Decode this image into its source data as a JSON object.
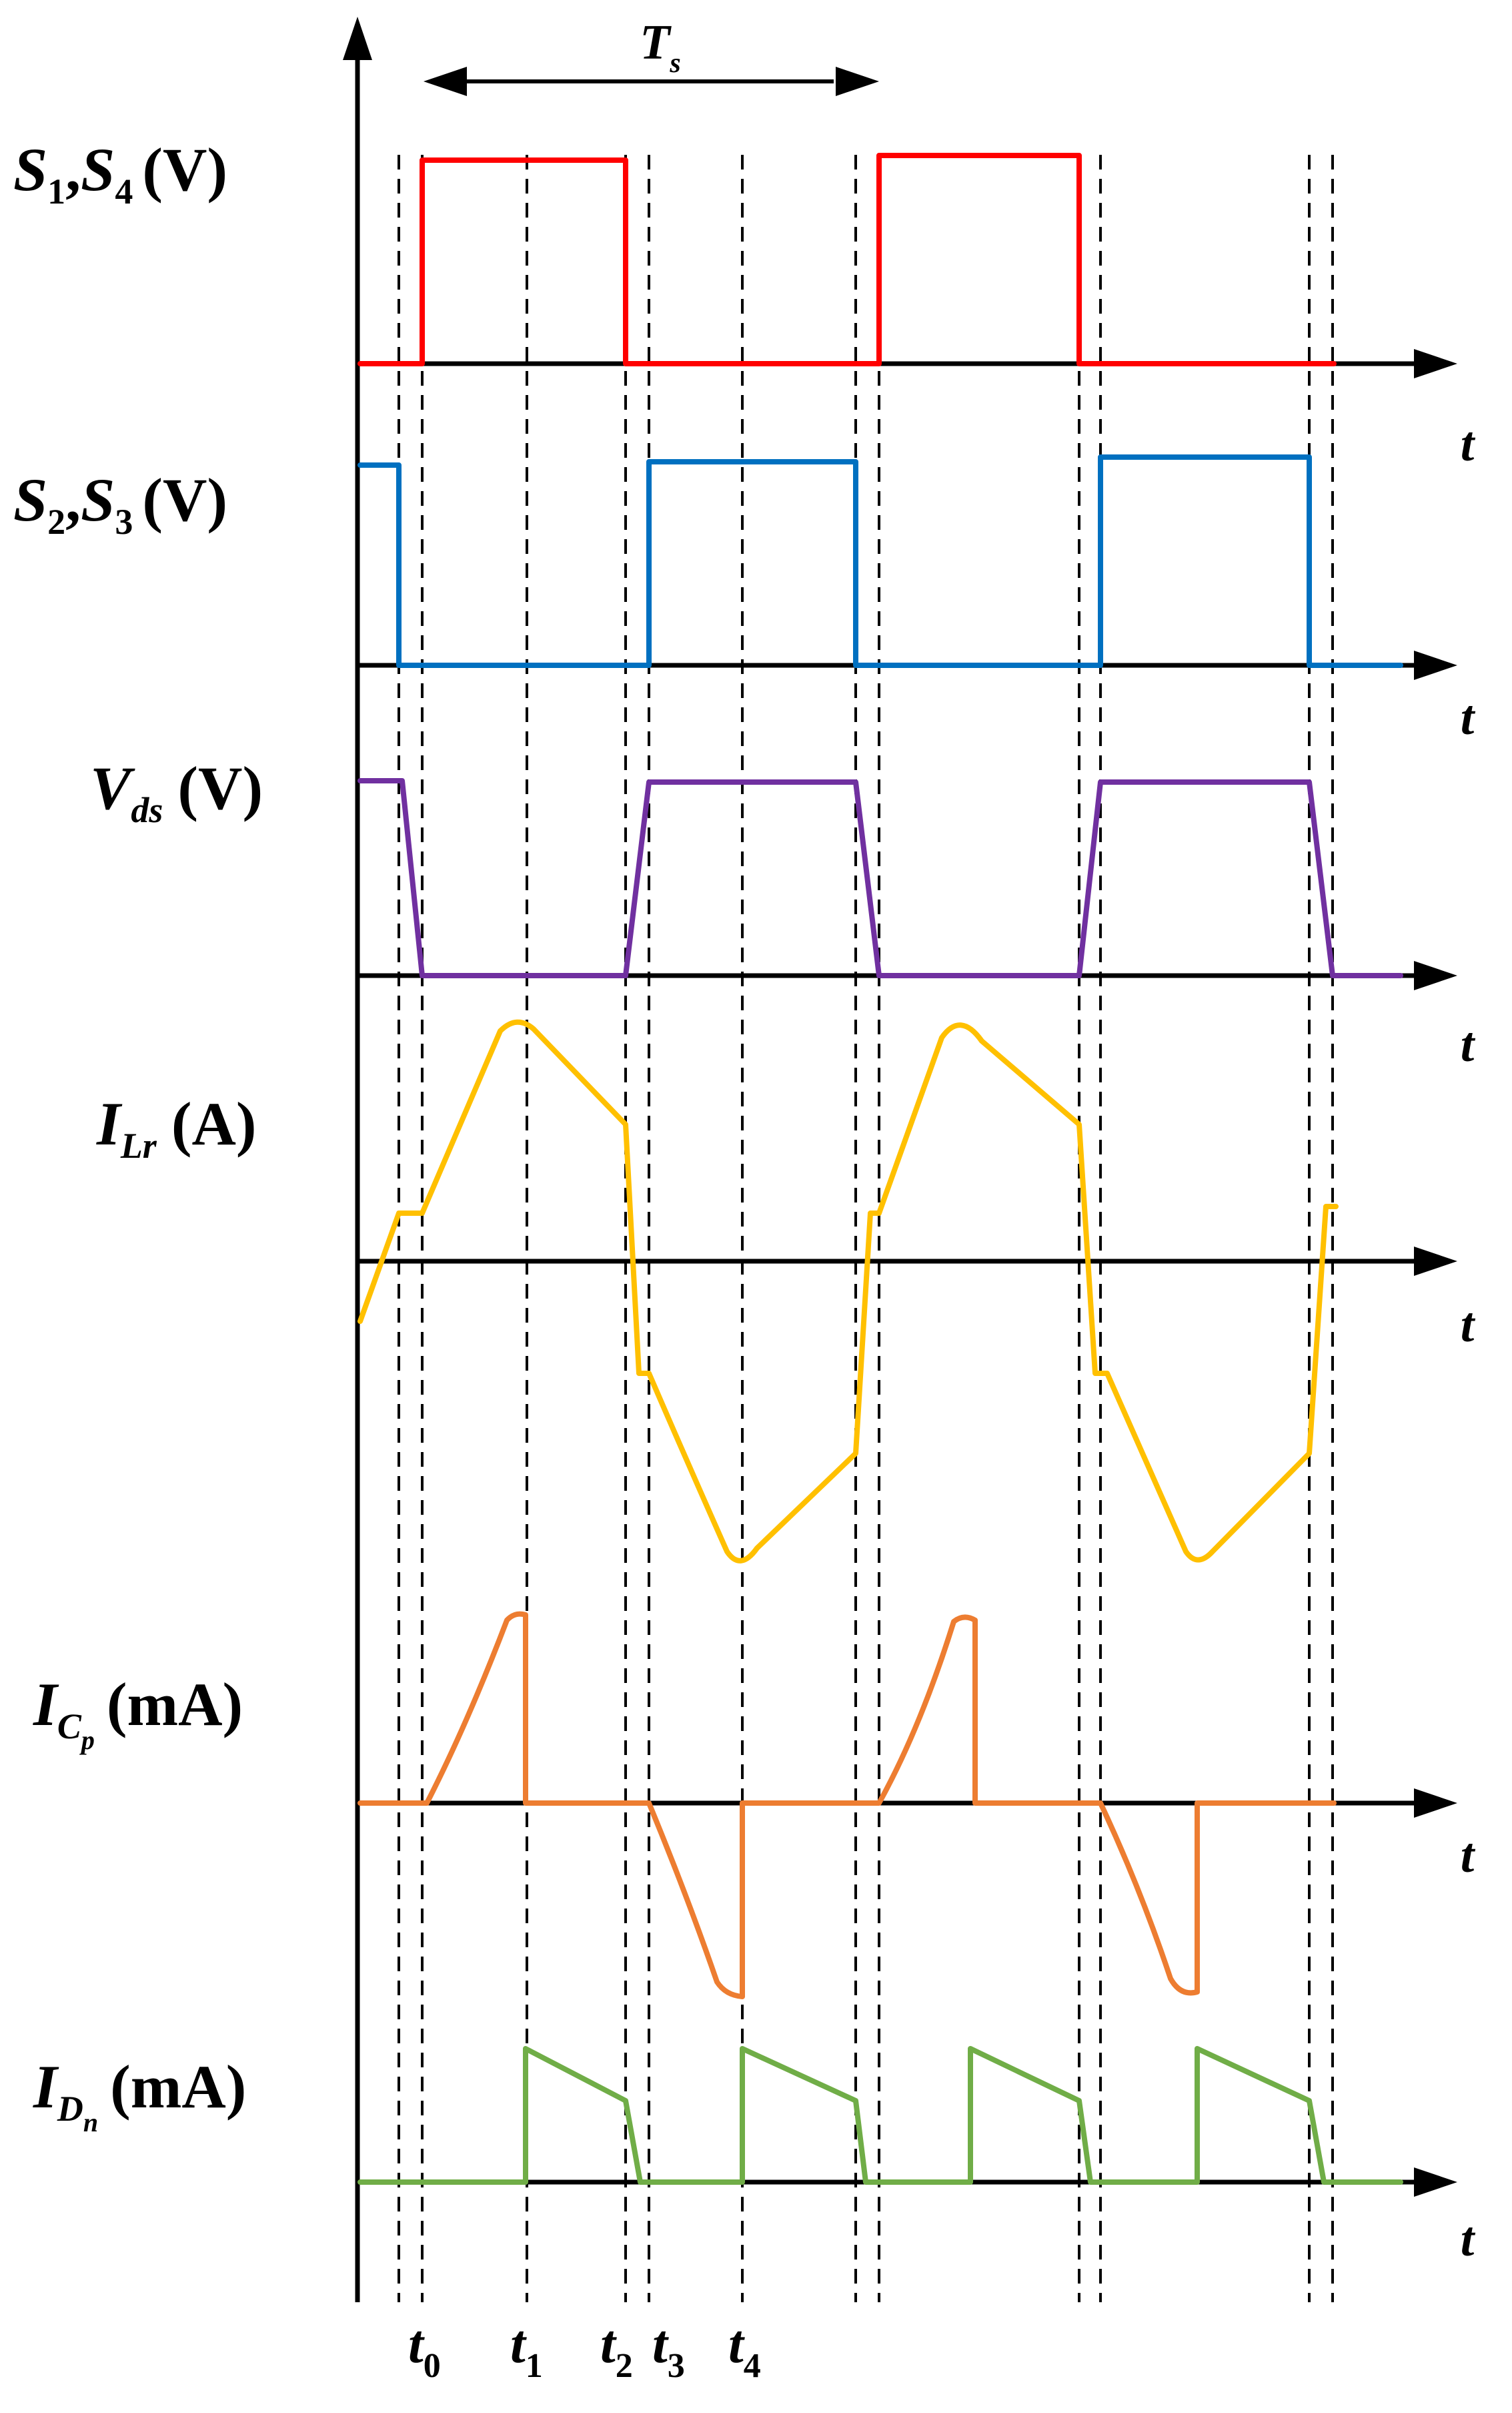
{
  "period_label": {
    "main": "T",
    "sub": "s"
  },
  "axis_label": "t",
  "colors": {
    "s14": "#ff0000",
    "s23": "#0070c0",
    "vds": "#7030a0",
    "ilr": "#ffc000",
    "icp": "#ed7d31",
    "idn": "#70ad47",
    "axis": "#000000"
  },
  "traces": [
    {
      "id": "s14",
      "parts": [
        {
          "t": "S",
          "s": "1"
        },
        {
          "t": ","
        },
        {
          "t": "S",
          "s": "4"
        }
      ],
      "unit": "(V)"
    },
    {
      "id": "s23",
      "parts": [
        {
          "t": "S",
          "s": "2"
        },
        {
          "t": ","
        },
        {
          "t": "S",
          "s": "3"
        }
      ],
      "unit": "(V)"
    },
    {
      "id": "vds",
      "parts": [
        {
          "t": "V",
          "s": "ds"
        }
      ],
      "unit": "(V)"
    },
    {
      "id": "ilr",
      "parts": [
        {
          "t": "I",
          "s": "Lr"
        }
      ],
      "unit": "(A)"
    },
    {
      "id": "icp",
      "parts": [
        {
          "t": "I",
          "s": "C",
          "ss": "p"
        }
      ],
      "unit": "(mA)"
    },
    {
      "id": "idn",
      "parts": [
        {
          "t": "I",
          "s": "D",
          "ss": "n"
        }
      ],
      "unit": "(mA)"
    }
  ],
  "time_markers": [
    {
      "main": "t",
      "sub": "0"
    },
    {
      "main": "t",
      "sub": "1"
    },
    {
      "main": "t",
      "sub": "2"
    },
    {
      "main": "t",
      "sub": "3"
    },
    {
      "main": "t",
      "sub": "4"
    }
  ]
}
